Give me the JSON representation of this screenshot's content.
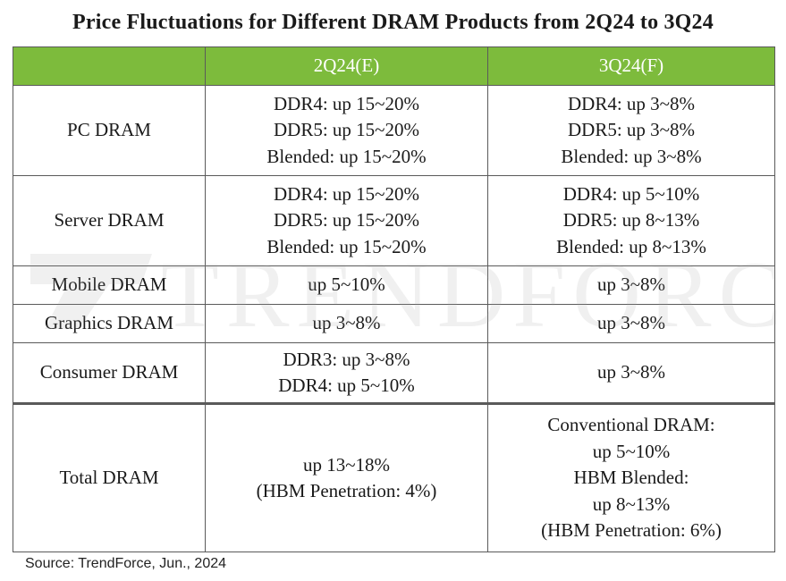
{
  "title": "Price Fluctuations  for Different  DRAM Products from 2Q24 to 3Q24",
  "header_color": "#7dbb3c",
  "table": {
    "columns": [
      "",
      "2Q24(E)",
      "3Q24(F)"
    ],
    "rows": [
      {
        "label": "PC DRAM",
        "q2": [
          "DDR4: up 15~20%",
          "DDR5: up 15~20%",
          "Blended: up 15~20%"
        ],
        "q3": [
          "DDR4: up 3~8%",
          "DDR5: up 3~8%",
          "Blended: up 3~8%"
        ]
      },
      {
        "label": "Server DRAM",
        "q2": [
          "DDR4: up 15~20%",
          "DDR5: up 15~20%",
          "Blended: up 15~20%"
        ],
        "q3": [
          "DDR4: up 5~10%",
          "DDR5: up 8~13%",
          "Blended: up 8~13%"
        ]
      },
      {
        "label": "Mobile DRAM",
        "q2": [
          "up 5~10%"
        ],
        "q3": [
          "up 3~8%"
        ]
      },
      {
        "label": "Graphics DRAM",
        "q2": [
          "up 3~8%"
        ],
        "q3": [
          "up 3~8%"
        ]
      },
      {
        "label": "Consumer DRAM",
        "q2": [
          "DDR3: up 3~8%",
          "DDR4: up 5~10%"
        ],
        "q3": [
          "up 3~8%"
        ]
      },
      {
        "label": "Total DRAM",
        "q2": [
          "up 13~18%",
          "(HBM Penetration:  4%)"
        ],
        "q3": [
          "Conventional DRAM:",
          "up 5~10%",
          "HBM Blended:",
          "up 8~13%",
          "(HBM Penetration:  6%)"
        ]
      }
    ]
  },
  "watermark": {
    "text": "TRENDFORCE",
    "logo_icon": "trendforce-logo-icon"
  },
  "source": "Source: TrendForce, Jun., 2024"
}
